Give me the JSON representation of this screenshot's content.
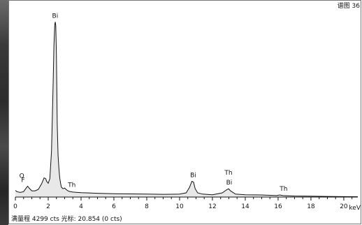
{
  "chart_data": {
    "type": "line",
    "title": "谱图 36",
    "xlabel": "keV",
    "ylabel": "",
    "xlim": [
      0,
      20.854
    ],
    "ylim": [
      0,
      4299
    ],
    "xticks": [
      0,
      2,
      4,
      6,
      8,
      10,
      12,
      14,
      16,
      18,
      20
    ],
    "grid": false,
    "series": [
      {
        "x": [
          0.0,
          0.1,
          0.3,
          0.5,
          0.68,
          0.75,
          0.85,
          1.0,
          1.2,
          1.4,
          1.6,
          1.75,
          1.85,
          1.9,
          2.0,
          2.1,
          2.2,
          2.3,
          2.35,
          2.4,
          2.43,
          2.46,
          2.5,
          2.55,
          2.6,
          2.65,
          2.7,
          2.75,
          2.8,
          2.9,
          3.0,
          3.1,
          3.2,
          3.3,
          3.5,
          4.0,
          5.0,
          6.0,
          7.0,
          8.0,
          9.0,
          10.0,
          10.4,
          10.6,
          10.75,
          10.85,
          10.95,
          11.1,
          11.4,
          12.0,
          12.6,
          12.85,
          12.98,
          13.1,
          13.4,
          14.0,
          15.0,
          15.9,
          16.1,
          16.3,
          17.0,
          18.0,
          19.0,
          20.0,
          20.85
        ],
        "y": [
          160,
          130,
          110,
          130,
          230,
          260,
          210,
          150,
          150,
          185,
          320,
          460,
          440,
          380,
          330,
          440,
          1100,
          2700,
          3650,
          4150,
          4210,
          4120,
          3450,
          1750,
          1000,
          690,
          470,
          340,
          240,
          200,
          215,
          180,
          150,
          135,
          120,
          105,
          90,
          80,
          75,
          70,
          65,
          70,
          100,
          230,
          380,
          360,
          200,
          100,
          70,
          55,
          100,
          170,
          200,
          150,
          70,
          55,
          50,
          35,
          50,
          35,
          25,
          20,
          15,
          10,
          8
        ]
      }
    ],
    "annotations": [
      {
        "text": "Bi",
        "x": 2.42,
        "y": 4210
      },
      {
        "text": "Th",
        "x": 3.18,
        "y": 180
      },
      {
        "text": "O",
        "x": 0.52,
        "y": 130
      },
      {
        "text": "F",
        "x": 0.72,
        "y": 260
      },
      {
        "text": "Bi",
        "x": 10.83,
        "y": 380
      },
      {
        "text": "Th",
        "x": 12.98,
        "y": 200
      },
      {
        "text": "Bi",
        "x": 13.02,
        "y": 200
      },
      {
        "text": "Th",
        "x": 16.25,
        "y": 50
      }
    ]
  },
  "footer": {
    "full_scale": "满量程 4299 cts 光标: 20.854  (0 cts)",
    "unit": "keV"
  }
}
